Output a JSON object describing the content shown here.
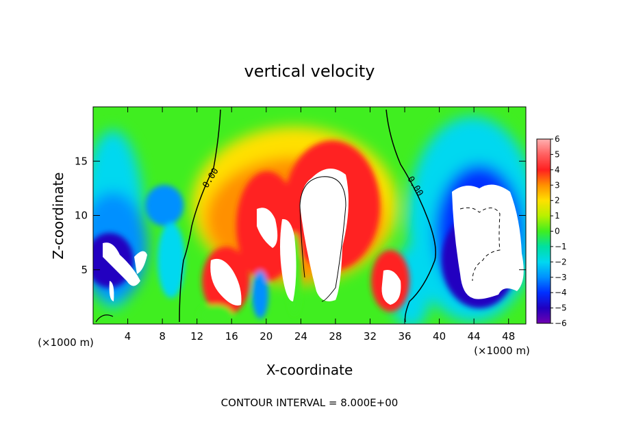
{
  "chart_data": {
    "type": "heatmap",
    "title": "vertical velocity",
    "xlabel": "X-coordinate",
    "ylabel": "Z-coordinate",
    "x_unit_left": "(×1000 m)",
    "x_unit_right": "(×1000 m)",
    "footer": "CONTOUR INTERVAL = 8.000E+00",
    "xlim": [
      0,
      50
    ],
    "ylim": [
      0,
      20
    ],
    "x_ticks": [
      4,
      8,
      12,
      16,
      20,
      24,
      28,
      32,
      36,
      40,
      44,
      48
    ],
    "y_ticks": [
      5,
      10,
      15
    ],
    "colorbar": {
      "ticks": [
        6,
        5,
        4,
        3,
        2,
        1,
        0,
        -1,
        -2,
        -3,
        -4,
        -5,
        -6
      ],
      "range": [
        -6,
        6
      ],
      "saturation": "values beyond ±6 shown white"
    },
    "contour_labels": [
      {
        "text": "0.00",
        "x": 13.8,
        "z": 13.5
      },
      {
        "text": "0.00",
        "x": 36.8,
        "z": 13.5
      }
    ],
    "features": [
      {
        "name": "downdraft-west",
        "x": 3.0,
        "z": 7.0,
        "w": -6
      },
      {
        "name": "updraft-core-1",
        "x": 15.0,
        "z": 4.5,
        "w": 8
      },
      {
        "name": "updraft-core-2",
        "x": 19.5,
        "z": 9.5,
        "w": 8
      },
      {
        "name": "updraft-core-3",
        "x": 23.0,
        "z": 4.5,
        "w": 7
      },
      {
        "name": "updraft-core-main",
        "x": 27.0,
        "z": 9.5,
        "w": 10
      },
      {
        "name": "updraft-core-4",
        "x": 34.5,
        "z": 4.5,
        "w": 7
      },
      {
        "name": "downdraft-east",
        "x": 45.0,
        "z": 8.5,
        "w": -8
      }
    ]
  }
}
